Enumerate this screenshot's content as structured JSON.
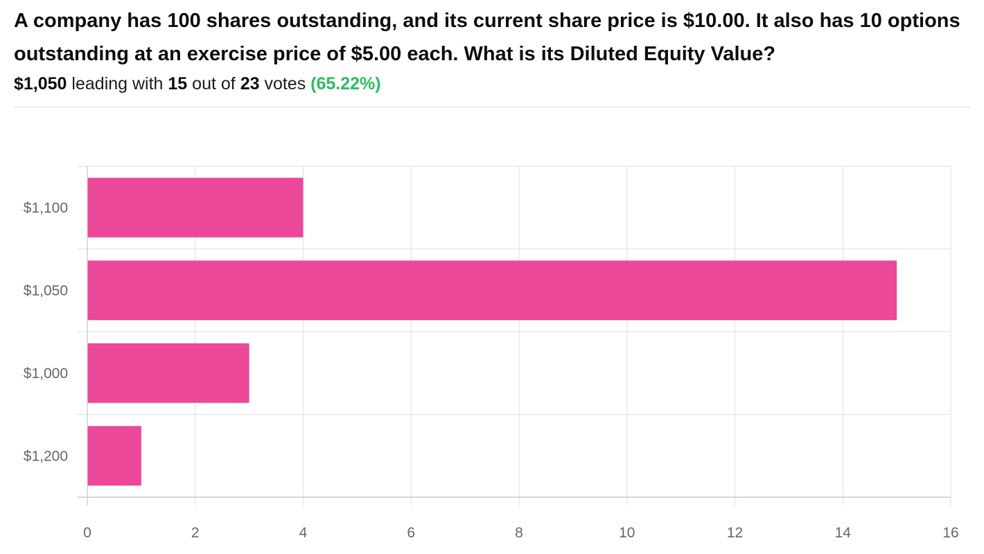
{
  "question": "A company has 100 shares outstanding, and its current share price is $10.00. It also has 10 options outstanding at an exercise price of $5.00 each. What is its Diluted Equity Value?",
  "summary": {
    "leader": "$1,050",
    "leading_with": "leading with",
    "leader_votes": "15",
    "out_of": "out of",
    "total_votes": "23",
    "votes_word": "votes",
    "percent": "(65.22%)"
  },
  "colors": {
    "bar": "#ec4899",
    "percent": "#2dbd5f",
    "grid": "#e3e3e3"
  },
  "chart_data": {
    "type": "bar",
    "orientation": "horizontal",
    "categories": [
      "$1,100",
      "$1,050",
      "$1,000",
      "$1,200"
    ],
    "values": [
      4,
      15,
      3,
      1
    ],
    "xlim": [
      0,
      16
    ],
    "xticks": [
      "0",
      "2",
      "4",
      "6",
      "8",
      "10",
      "12",
      "14",
      "16"
    ],
    "grid": true,
    "title": "",
    "xlabel": "",
    "ylabel": ""
  }
}
